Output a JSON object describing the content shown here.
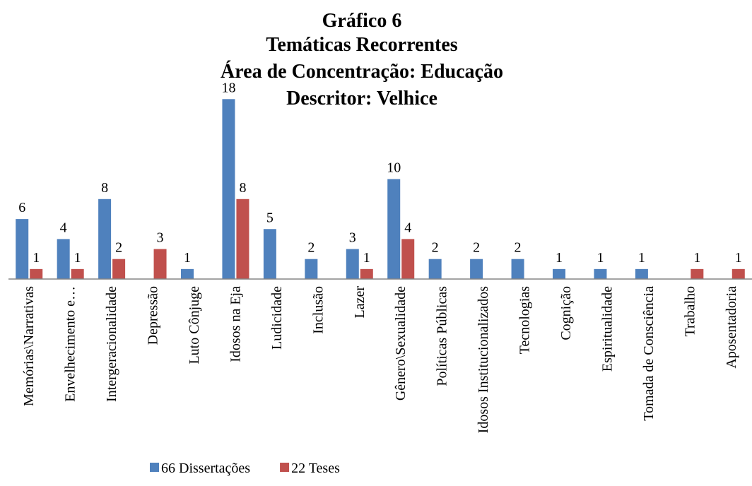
{
  "chart_data": {
    "type": "bar",
    "title": [
      "Gráfico 6",
      "Temáticas Recorrentes",
      "Área de Concentração: Educação",
      "Descritor: Velhice"
    ],
    "categories": [
      "Memórias\\Narrativas",
      "Envelhecimento e…",
      "Intergeracionalidade",
      "Depressão",
      "Luto Cônjuge",
      "Idosos na Eja",
      "Ludicidade",
      "Inclusão",
      "Lazer",
      "Gênero\\Sexualidade",
      "Políticas Públicas",
      "Idosos Institucionalizados",
      "Tecnologias",
      "Cognição",
      "Espiritualidade",
      "Tomada de Consciência",
      "Trabalho",
      "Aposentadoria"
    ],
    "series": [
      {
        "name": "66 Dissertações",
        "color": "#4f81bd",
        "values": [
          6,
          4,
          8,
          null,
          1,
          18,
          5,
          2,
          3,
          10,
          2,
          2,
          2,
          1,
          1,
          1,
          null,
          null
        ]
      },
      {
        "name": "22 Teses",
        "color": "#c0504d",
        "values": [
          1,
          1,
          2,
          3,
          null,
          8,
          null,
          null,
          1,
          4,
          null,
          null,
          null,
          null,
          null,
          null,
          1,
          1
        ]
      }
    ],
    "ylim": [
      0,
      20
    ]
  }
}
